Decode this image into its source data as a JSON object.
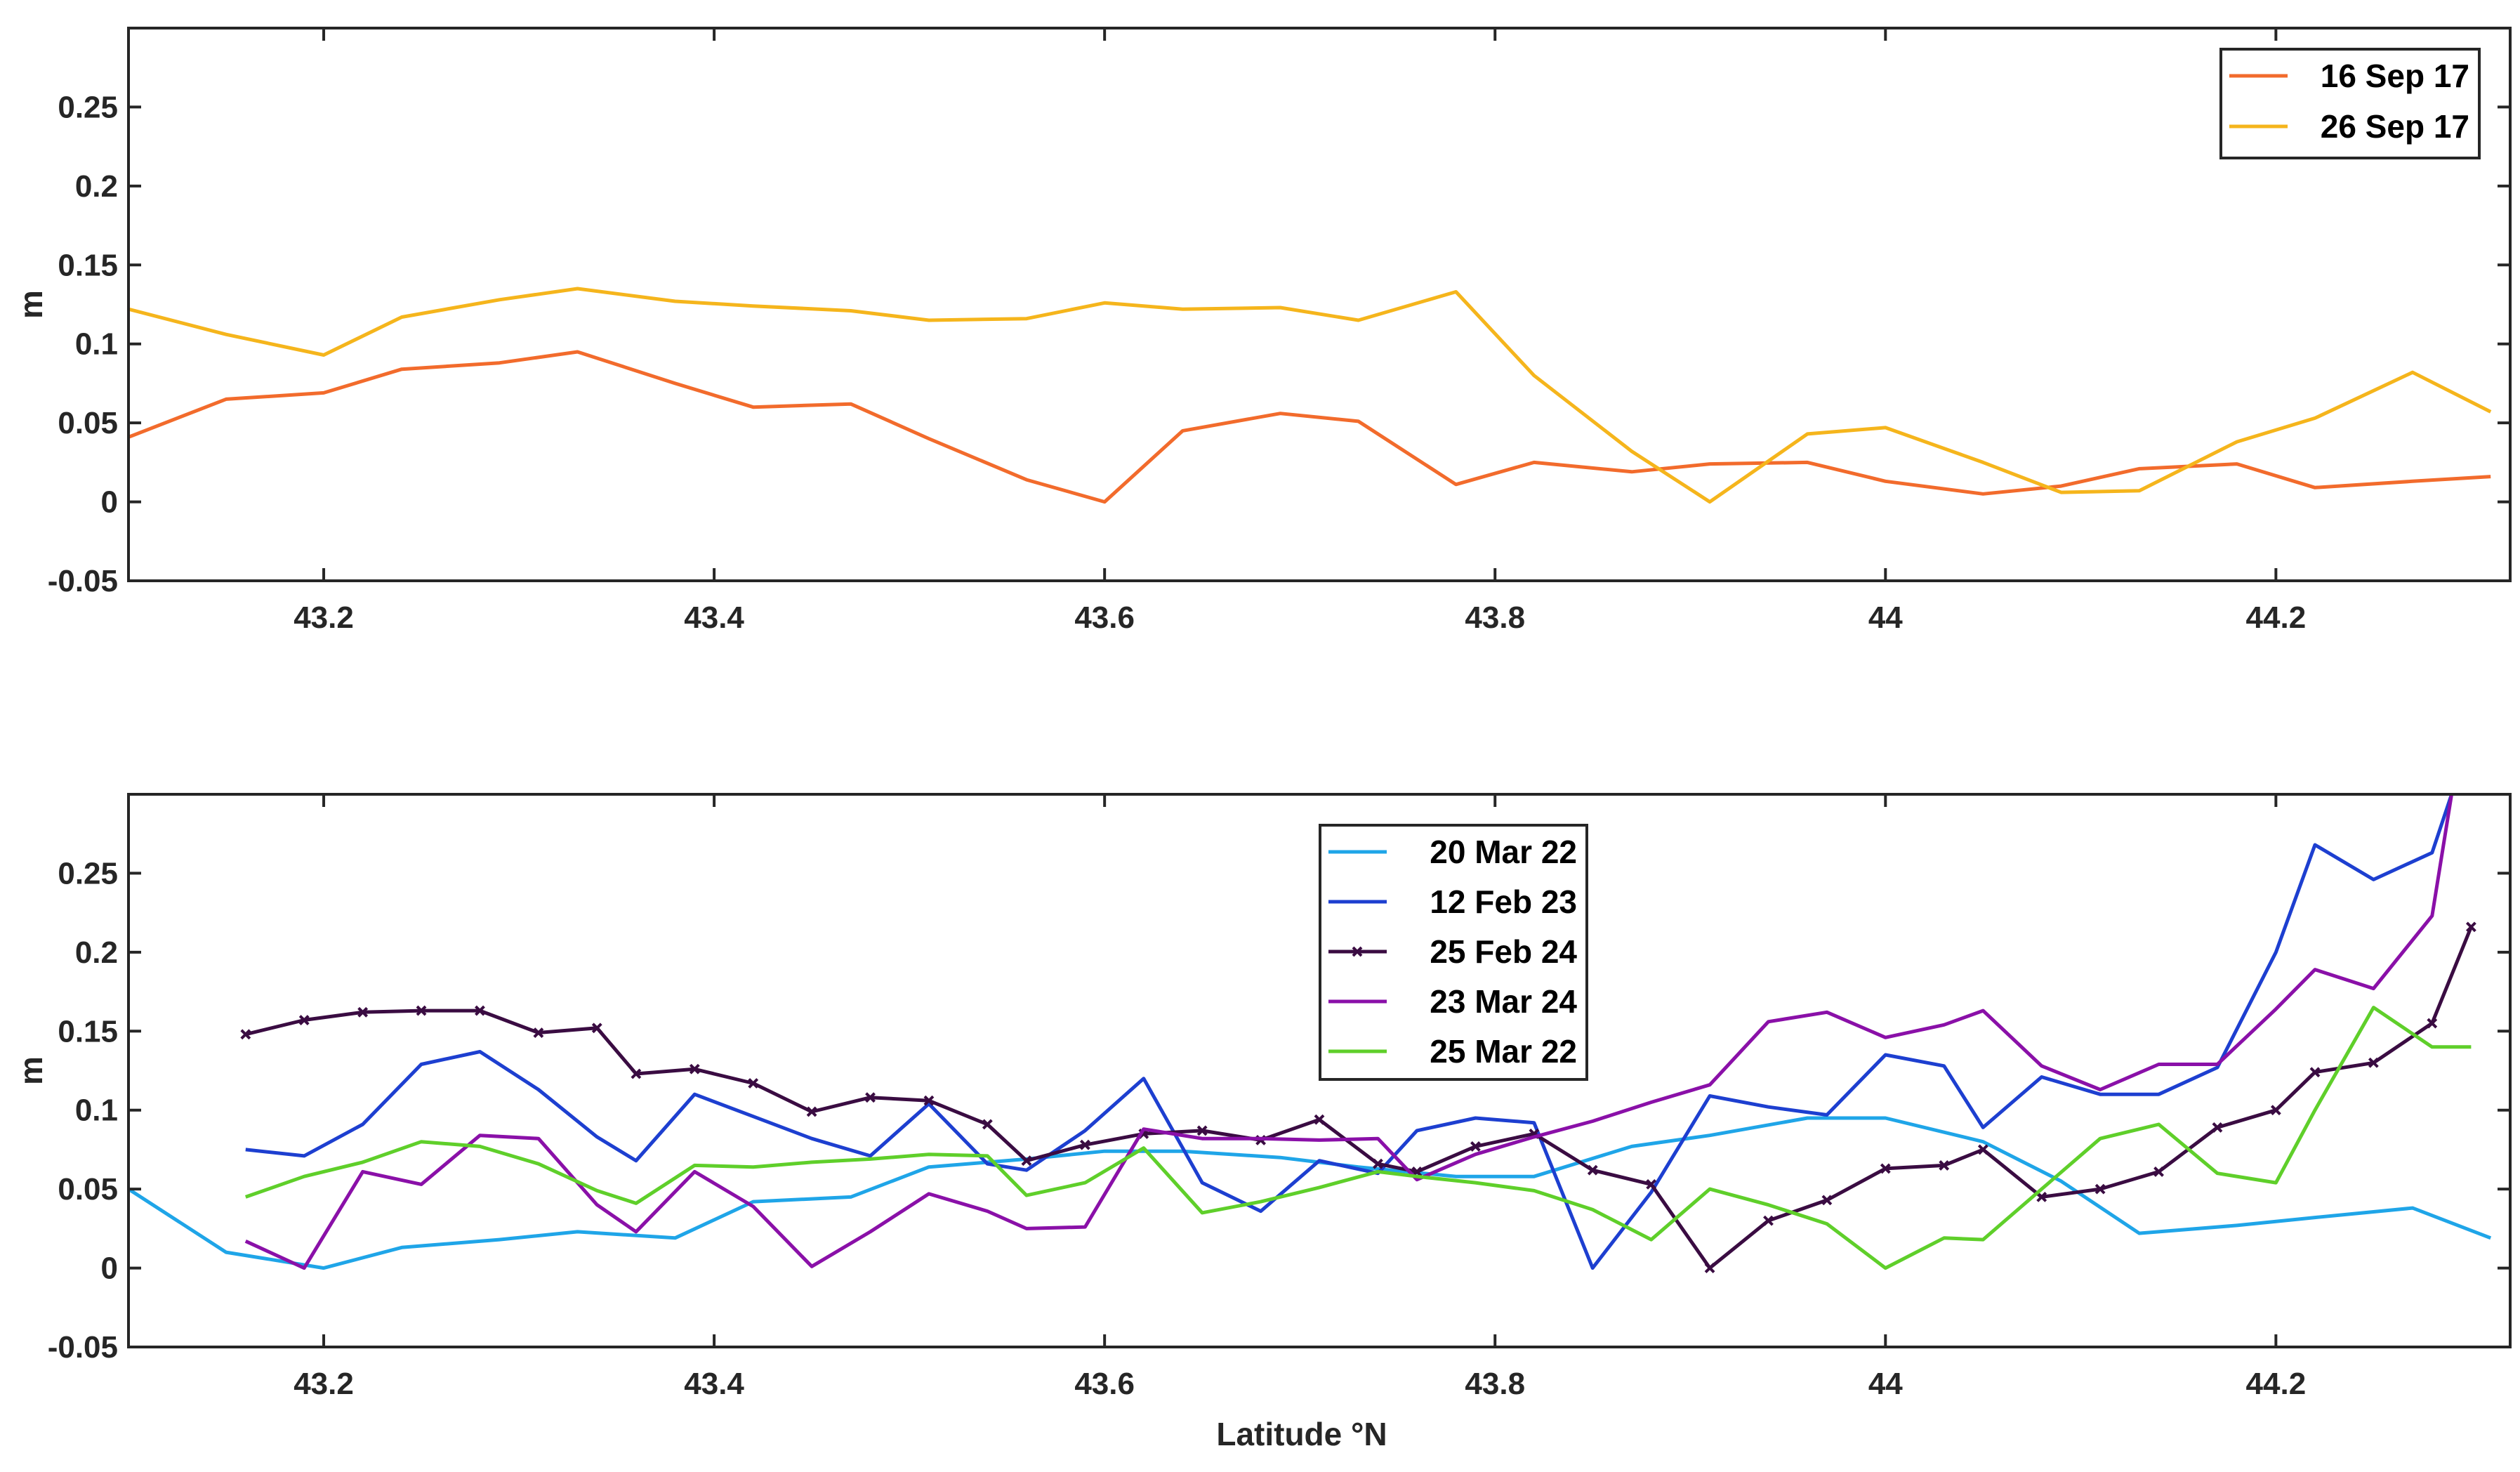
{
  "chart_data": [
    {
      "type": "line",
      "ylabel": "m",
      "xlabel": "",
      "xlim": [
        43.1,
        44.32
      ],
      "ylim": [
        -0.05,
        0.3
      ],
      "xticks": [
        "43.2",
        "43.4",
        "43.6",
        "43.8",
        "44",
        "44.2"
      ],
      "yticks": [
        "-0.05",
        "0",
        "0.05",
        "0.1",
        "0.15",
        "0.2",
        "0.25"
      ],
      "legend_position": "top-right",
      "series": [
        {
          "name": "16 Sep 17",
          "color": "#f26b2c",
          "marker": "none",
          "x": [
            43.1,
            43.15,
            43.2,
            43.24,
            43.29,
            43.33,
            43.38,
            43.42,
            43.47,
            43.51,
            43.56,
            43.6,
            43.64,
            43.69,
            43.73,
            43.78,
            43.82,
            43.87,
            43.91,
            43.96,
            44.0,
            44.05,
            44.09,
            44.13,
            44.18,
            44.22,
            44.27,
            44.31
          ],
          "y": [
            0.041,
            0.065,
            0.069,
            0.084,
            0.088,
            0.095,
            0.075,
            0.06,
            0.062,
            0.04,
            0.014,
            0.0,
            0.045,
            0.056,
            0.051,
            0.011,
            0.025,
            0.019,
            0.024,
            0.025,
            0.013,
            0.005,
            0.01,
            0.021,
            0.024,
            0.009,
            0.013,
            0.016
          ]
        },
        {
          "name": "26 Sep 17",
          "color": "#f5b51c",
          "marker": "none",
          "x": [
            43.1,
            43.15,
            43.2,
            43.24,
            43.29,
            43.33,
            43.38,
            43.42,
            43.47,
            43.51,
            43.56,
            43.6,
            43.64,
            43.69,
            43.73,
            43.78,
            43.82,
            43.87,
            43.91,
            43.96,
            44.0,
            44.05,
            44.09,
            44.13,
            44.18,
            44.22,
            44.27,
            44.31
          ],
          "y": [
            0.122,
            0.106,
            0.093,
            0.117,
            0.128,
            0.135,
            0.127,
            0.124,
            0.121,
            0.115,
            0.116,
            0.126,
            0.122,
            0.123,
            0.115,
            0.133,
            0.08,
            0.032,
            0.0,
            0.043,
            0.047,
            0.025,
            0.006,
            0.007,
            0.038,
            0.053,
            0.082,
            0.057
          ]
        }
      ]
    },
    {
      "type": "line",
      "ylabel": "m",
      "xlabel": "Latitude °N",
      "xlim": [
        43.1,
        44.32
      ],
      "ylim": [
        -0.05,
        0.3
      ],
      "xticks": [
        "43.2",
        "43.4",
        "43.6",
        "43.8",
        "44",
        "44.2"
      ],
      "yticks": [
        "-0.05",
        "0",
        "0.05",
        "0.1",
        "0.15",
        "0.2",
        "0.25"
      ],
      "legend_position": "top-center",
      "series": [
        {
          "name": "20 Mar 22",
          "color": "#1fa5e8",
          "marker": "none",
          "x": [
            43.1,
            43.15,
            43.2,
            43.24,
            43.29,
            43.33,
            43.38,
            43.42,
            43.47,
            43.51,
            43.56,
            43.6,
            43.64,
            43.69,
            43.73,
            43.78,
            43.82,
            43.87,
            43.91,
            43.96,
            44.0,
            44.05,
            44.09,
            44.13,
            44.18,
            44.22,
            44.27,
            44.31
          ],
          "y": [
            0.05,
            0.01,
            0.0,
            0.013,
            0.018,
            0.023,
            0.019,
            0.042,
            0.045,
            0.064,
            0.069,
            0.074,
            0.074,
            0.07,
            0.064,
            0.058,
            0.058,
            0.077,
            0.084,
            0.095,
            0.095,
            0.08,
            0.055,
            0.022,
            0.027,
            0.032,
            0.038,
            0.019
          ]
        },
        {
          "name": "12 Feb 23",
          "color": "#1d3fd0",
          "marker": "none",
          "x": [
            43.16,
            43.19,
            43.22,
            43.25,
            43.28,
            43.31,
            43.34,
            43.36,
            43.39,
            43.42,
            43.45,
            43.48,
            43.51,
            43.54,
            43.56,
            43.59,
            43.62,
            43.65,
            43.68,
            43.71,
            43.74,
            43.76,
            43.79,
            43.82,
            43.85,
            43.88,
            43.91,
            43.94,
            43.97,
            44.0,
            44.03,
            44.05,
            44.08,
            44.11,
            44.14,
            44.17,
            44.2,
            44.22,
            44.25,
            44.28,
            44.29
          ],
          "y": [
            0.075,
            0.071,
            0.091,
            0.129,
            0.137,
            0.113,
            0.083,
            0.068,
            0.11,
            0.096,
            0.082,
            0.071,
            0.104,
            0.066,
            0.062,
            0.087,
            0.12,
            0.054,
            0.036,
            0.068,
            0.06,
            0.087,
            0.095,
            0.092,
            0.0,
            0.048,
            0.109,
            0.102,
            0.097,
            0.135,
            0.128,
            0.089,
            0.121,
            0.11,
            0.11,
            0.127,
            0.2,
            0.268,
            0.246,
            0.263,
            0.3
          ]
        },
        {
          "name": "25 Feb 24",
          "color": "#3a0c42",
          "marker": "x",
          "x": [
            43.16,
            43.19,
            43.22,
            43.25,
            43.28,
            43.31,
            43.34,
            43.36,
            43.39,
            43.42,
            43.45,
            43.48,
            43.51,
            43.54,
            43.56,
            43.59,
            43.62,
            43.65,
            43.68,
            43.71,
            43.74,
            43.76,
            43.79,
            43.82,
            43.85,
            43.88,
            43.91,
            43.94,
            43.97,
            44.0,
            44.03,
            44.05,
            44.08,
            44.11,
            44.14,
            44.17,
            44.2,
            44.22,
            44.25,
            44.28,
            44.3
          ],
          "y": [
            0.148,
            0.157,
            0.162,
            0.163,
            0.163,
            0.149,
            0.152,
            0.123,
            0.126,
            0.117,
            0.099,
            0.108,
            0.106,
            0.091,
            0.068,
            0.078,
            0.085,
            0.087,
            0.081,
            0.094,
            0.066,
            0.061,
            0.077,
            0.085,
            0.062,
            0.053,
            0.0,
            0.03,
            0.043,
            0.063,
            0.065,
            0.075,
            0.045,
            0.05,
            0.061,
            0.089,
            0.1,
            0.124,
            0.13,
            0.155,
            0.216
          ]
        },
        {
          "name": "23 Mar 24",
          "color": "#8a10a8",
          "marker": "none",
          "x": [
            43.16,
            43.19,
            43.22,
            43.25,
            43.28,
            43.31,
            43.34,
            43.36,
            43.39,
            43.42,
            43.45,
            43.48,
            43.51,
            43.54,
            43.56,
            43.59,
            43.62,
            43.65,
            43.68,
            43.71,
            43.74,
            43.76,
            43.79,
            43.82,
            43.85,
            43.88,
            43.91,
            43.94,
            43.97,
            44.0,
            44.03,
            44.05,
            44.08,
            44.11,
            44.14,
            44.17,
            44.2,
            44.22,
            44.25,
            44.28,
            44.29
          ],
          "y": [
            0.017,
            0.0,
            0.061,
            0.053,
            0.084,
            0.082,
            0.04,
            0.023,
            0.061,
            0.039,
            0.001,
            0.023,
            0.047,
            0.036,
            0.025,
            0.026,
            0.088,
            0.082,
            0.082,
            0.081,
            0.082,
            0.056,
            0.072,
            0.083,
            0.093,
            0.105,
            0.116,
            0.156,
            0.162,
            0.146,
            0.154,
            0.163,
            0.128,
            0.113,
            0.129,
            0.129,
            0.164,
            0.189,
            0.177,
            0.223,
            0.3
          ]
        },
        {
          "name": "25 Mar 22",
          "color": "#5fcf2a",
          "marker": "none",
          "x": [
            43.16,
            43.19,
            43.22,
            43.25,
            43.28,
            43.31,
            43.34,
            43.36,
            43.39,
            43.42,
            43.45,
            43.48,
            43.51,
            43.54,
            43.56,
            43.59,
            43.62,
            43.65,
            43.68,
            43.71,
            43.74,
            43.76,
            43.79,
            43.82,
            43.85,
            43.88,
            43.91,
            43.94,
            43.97,
            44.0,
            44.03,
            44.05,
            44.08,
            44.11,
            44.14,
            44.17,
            44.2,
            44.22,
            44.25,
            44.28,
            44.3
          ],
          "y": [
            0.045,
            0.058,
            0.067,
            0.08,
            0.077,
            0.066,
            0.049,
            0.041,
            0.065,
            0.064,
            0.067,
            0.069,
            0.072,
            0.071,
            0.046,
            0.054,
            0.076,
            0.035,
            0.042,
            0.051,
            0.061,
            0.058,
            0.054,
            0.049,
            0.037,
            0.018,
            0.05,
            0.04,
            0.028,
            0.0,
            0.019,
            0.018,
            0.05,
            0.082,
            0.091,
            0.06,
            0.054,
            0.1,
            0.165,
            0.14,
            0.14
          ]
        }
      ]
    }
  ]
}
